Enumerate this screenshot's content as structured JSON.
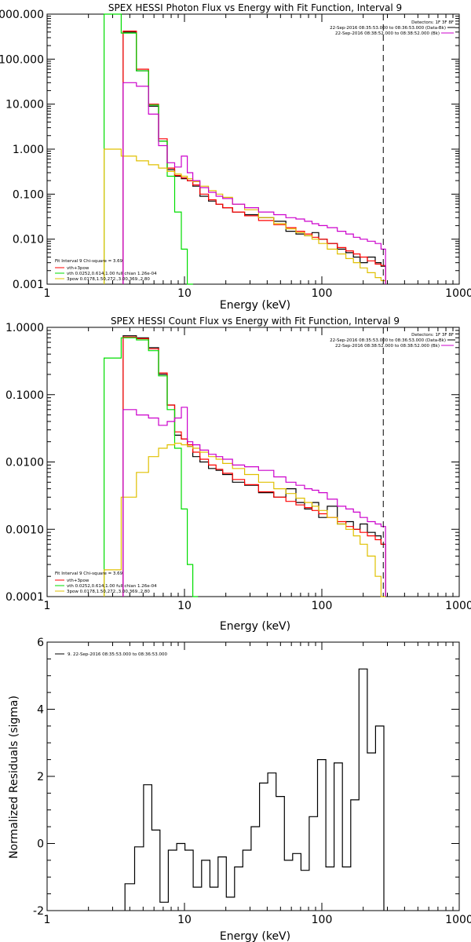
{
  "chart_data": [
    {
      "type": "line",
      "title": "SPEX HESSI Photon Flux vs Energy with Fit Function, Interval 9",
      "xlabel": "Energy (keV)",
      "ylabel": "",
      "x_scale": "log",
      "y_scale": "log",
      "xlim": [
        1,
        1000
      ],
      "ylim": [
        0.001,
        1000
      ],
      "x_ticks": [
        "1",
        "10",
        "100",
        "1000"
      ],
      "y_ticks": [
        "0.001",
        "0.010",
        "0.100",
        "1.000",
        "10.000",
        "100.000",
        "1000.000"
      ],
      "dashed_vline_x": 280,
      "info_right": [
        "Detectors: 1F 3F 8F",
        "22-Sep-2016 08:35:53.000 to 08:36:53.000 (Data-Bk)",
        "22-Sep-2016 08:38:52.000 to 08:38:52.000 (Bk)"
      ],
      "info_left": [
        "Fit Interval 9   Chi-square = 3.69",
        "vth+3pow",
        "vth 0.0252,0.614,1.00  full chian 1.26e-04",
        "3pow 0.0178,1.50,272.,3.00,369.,2.80"
      ],
      "series": [
        {
          "name": "Data-Bk",
          "color": "#000000",
          "x": [
            4,
            5,
            6,
            7,
            8,
            9,
            10,
            11,
            12,
            14,
            16,
            18,
            20,
            25,
            30,
            40,
            50,
            60,
            70,
            80,
            90,
            100,
            120,
            140,
            160,
            180,
            200,
            230,
            260,
            280
          ],
          "y": [
            400,
            55,
            9,
            1.5,
            0.35,
            0.25,
            0.22,
            0.2,
            0.15,
            0.09,
            0.07,
            0.06,
            0.05,
            0.04,
            0.035,
            0.03,
            0.025,
            0.015,
            0.013,
            0.012,
            0.014,
            0.01,
            0.008,
            0.006,
            0.005,
            0.004,
            0.003,
            0.004,
            0.003,
            0.0025
          ]
        },
        {
          "name": "vth+3pow",
          "color": "#ff0000",
          "x": [
            4,
            5,
            6,
            7,
            8,
            9,
            10,
            11,
            12,
            14,
            16,
            18,
            20,
            25,
            30,
            40,
            50,
            60,
            70,
            80,
            90,
            100,
            120,
            140,
            160,
            180,
            200,
            230,
            260,
            280
          ],
          "y": [
            420,
            60,
            10,
            1.7,
            0.38,
            0.26,
            0.23,
            0.2,
            0.16,
            0.1,
            0.075,
            0.06,
            0.05,
            0.04,
            0.033,
            0.026,
            0.021,
            0.018,
            0.015,
            0.013,
            0.011,
            0.01,
            0.008,
            0.0065,
            0.0055,
            0.0047,
            0.004,
            0.0033,
            0.0028,
            0.0026
          ]
        },
        {
          "name": "vth",
          "color": "#00dd00",
          "x": [
            3,
            4,
            5,
            6,
            7,
            8,
            9,
            10,
            11
          ],
          "y": [
            1000,
            380,
            55,
            9.5,
            1.5,
            0.25,
            0.04,
            0.006,
            0.001
          ]
        },
        {
          "name": "3pow",
          "color": "#e0c000",
          "x": [
            3,
            4,
            5,
            6,
            7,
            8,
            9,
            10,
            11,
            12,
            14,
            16,
            18,
            20,
            25,
            30,
            40,
            50,
            60,
            70,
            80,
            90,
            100,
            120,
            140,
            160,
            180,
            200,
            230,
            260,
            280
          ],
          "y": [
            1.0,
            0.7,
            0.55,
            0.45,
            0.38,
            0.32,
            0.28,
            0.25,
            0.22,
            0.19,
            0.15,
            0.12,
            0.1,
            0.085,
            0.06,
            0.045,
            0.03,
            0.022,
            0.017,
            0.014,
            0.012,
            0.01,
            0.008,
            0.006,
            0.0047,
            0.0037,
            0.003,
            0.0023,
            0.0018,
            0.0014,
            0.0012
          ]
        },
        {
          "name": "Bk",
          "color": "#cc00cc",
          "x": [
            4,
            5,
            6,
            7,
            8,
            9,
            10,
            11,
            12,
            14,
            16,
            18,
            20,
            25,
            30,
            40,
            50,
            60,
            70,
            80,
            90,
            100,
            120,
            140,
            160,
            180,
            200,
            230,
            260,
            280
          ],
          "y": [
            30,
            25,
            6,
            1.2,
            0.5,
            0.4,
            0.7,
            0.3,
            0.2,
            0.14,
            0.11,
            0.09,
            0.08,
            0.06,
            0.05,
            0.04,
            0.035,
            0.03,
            0.028,
            0.025,
            0.022,
            0.02,
            0.018,
            0.015,
            0.013,
            0.011,
            0.01,
            0.009,
            0.008,
            0.006
          ]
        }
      ]
    },
    {
      "type": "line",
      "title": "SPEX HESSI Count Flux vs Energy with Fit Function, Interval 9",
      "xlabel": "Energy (keV)",
      "ylabel": "",
      "x_scale": "log",
      "y_scale": "log",
      "xlim": [
        1,
        1000
      ],
      "ylim": [
        0.0001,
        1
      ],
      "x_ticks": [
        "1",
        "10",
        "100",
        "1000"
      ],
      "y_ticks": [
        "0.0001",
        "0.0010",
        "0.0100",
        "0.1000",
        "1.0000"
      ],
      "dashed_vline_x": 280,
      "info_right": [
        "Detectors: 1F 3F 8F",
        "22-Sep-2016 08:35:53.000 to 08:36:53.000 (Data-Bk)",
        "22-Sep-2016 08:38:52.000 to 08:38:52.000 (Bk)"
      ],
      "info_left": [
        "Fit Interval 9   Chi-square = 3.69",
        "vth+3pow",
        "vth 0.0252,0.614,1.00  full chian 1.26e-04",
        "3pow 0.0178,1.50,272.,3.00,369.,2.80"
      ],
      "series": [
        {
          "name": "Data-Bk",
          "color": "#000000",
          "x": [
            4,
            5,
            6,
            7,
            8,
            9,
            10,
            11,
            12,
            14,
            16,
            18,
            20,
            25,
            30,
            40,
            50,
            60,
            70,
            80,
            90,
            100,
            120,
            140,
            160,
            180,
            200,
            230,
            260,
            280
          ],
          "y": [
            0.75,
            0.7,
            0.5,
            0.2,
            0.07,
            0.025,
            0.022,
            0.017,
            0.012,
            0.01,
            0.008,
            0.0075,
            0.0065,
            0.005,
            0.0045,
            0.0035,
            0.003,
            0.004,
            0.0025,
            0.002,
            0.0025,
            0.0015,
            0.0022,
            0.0012,
            0.0013,
            0.001,
            0.0012,
            0.0009,
            0.0008,
            0.0006
          ]
        },
        {
          "name": "vth+3pow",
          "color": "#ff0000",
          "x": [
            4,
            5,
            6,
            7,
            8,
            9,
            10,
            11,
            12,
            14,
            16,
            18,
            20,
            25,
            30,
            40,
            50,
            60,
            70,
            80,
            90,
            100,
            120,
            140,
            160,
            180,
            200,
            230,
            260,
            280
          ],
          "y": [
            0.72,
            0.68,
            0.48,
            0.21,
            0.07,
            0.028,
            0.022,
            0.018,
            0.014,
            0.011,
            0.009,
            0.0078,
            0.0068,
            0.0055,
            0.0046,
            0.0036,
            0.003,
            0.0026,
            0.0023,
            0.0021,
            0.0019,
            0.0017,
            0.0015,
            0.0013,
            0.0011,
            0.001,
            0.0009,
            0.0008,
            0.0007,
            0.0006
          ]
        },
        {
          "name": "vth",
          "color": "#00dd00",
          "x": [
            3,
            4,
            5,
            6,
            7,
            8,
            9,
            10,
            11,
            12
          ],
          "y": [
            0.35,
            0.7,
            0.65,
            0.45,
            0.19,
            0.06,
            0.016,
            0.002,
            0.0003,
            0.0001
          ]
        },
        {
          "name": "3pow",
          "color": "#e0c000",
          "x": [
            3,
            4,
            5,
            6,
            7,
            8,
            9,
            10,
            11,
            12,
            14,
            16,
            18,
            20,
            25,
            30,
            40,
            50,
            60,
            70,
            80,
            90,
            100,
            120,
            140,
            160,
            180,
            200,
            230,
            260,
            280
          ],
          "y": [
            0.00025,
            0.003,
            0.007,
            0.012,
            0.016,
            0.018,
            0.019,
            0.018,
            0.017,
            0.016,
            0.014,
            0.012,
            0.011,
            0.0095,
            0.008,
            0.0065,
            0.005,
            0.004,
            0.0034,
            0.0029,
            0.0025,
            0.0022,
            0.0019,
            0.0015,
            0.0012,
            0.001,
            0.0008,
            0.0006,
            0.0004,
            0.0002,
            0.0001
          ]
        },
        {
          "name": "Bk",
          "color": "#cc00cc",
          "x": [
            4,
            5,
            6,
            7,
            8,
            9,
            10,
            11,
            12,
            14,
            16,
            18,
            20,
            25,
            30,
            40,
            50,
            60,
            70,
            80,
            90,
            100,
            120,
            140,
            160,
            180,
            200,
            230,
            260,
            280
          ],
          "y": [
            0.06,
            0.05,
            0.045,
            0.035,
            0.04,
            0.045,
            0.065,
            0.02,
            0.018,
            0.015,
            0.013,
            0.012,
            0.011,
            0.009,
            0.0085,
            0.0075,
            0.006,
            0.005,
            0.0045,
            0.004,
            0.0038,
            0.0035,
            0.0028,
            0.0022,
            0.002,
            0.0018,
            0.0015,
            0.0013,
            0.0012,
            0.0011
          ]
        }
      ]
    },
    {
      "type": "line",
      "title": "",
      "xlabel": "Energy (keV)",
      "ylabel": "Normalized Residuals (sigma)",
      "x_scale": "log",
      "y_scale": "linear",
      "xlim": [
        1,
        1000
      ],
      "ylim": [
        -2,
        6
      ],
      "x_ticks": [
        "1",
        "10",
        "100",
        "1000"
      ],
      "y_ticks": [
        "-2",
        "0",
        "2",
        "4",
        "6"
      ],
      "legend": "9. 22-Sep-2016 08:35:53.000 to 08:36:53.000",
      "series": [
        {
          "name": "9. 22-Sep-2016 08:35:53.000 to 08:36:53.000",
          "color": "#000000",
          "x": [
            4,
            4.7,
            5.4,
            6.2,
            7.1,
            8.2,
            9.4,
            10.8,
            12.4,
            14.3,
            16.4,
            18.8,
            21.6,
            24.8,
            28.5,
            32.8,
            37.7,
            43.3,
            49.8,
            57.2,
            65.7,
            75.5,
            86.8,
            99.7,
            114.6,
            131.7,
            151.3,
            173.9,
            199.8,
            229.6,
            263.8
          ],
          "y": [
            -1.2,
            -0.1,
            1.75,
            0.4,
            -1.75,
            -0.2,
            0.0,
            -0.2,
            -1.3,
            -0.5,
            -1.3,
            -0.4,
            -1.6,
            -0.7,
            -0.2,
            0.5,
            1.8,
            2.1,
            1.4,
            -0.5,
            -0.3,
            -0.8,
            0.8,
            2.5,
            -0.7,
            2.4,
            -0.7,
            1.3,
            5.2,
            2.7,
            3.5
          ]
        }
      ]
    }
  ]
}
